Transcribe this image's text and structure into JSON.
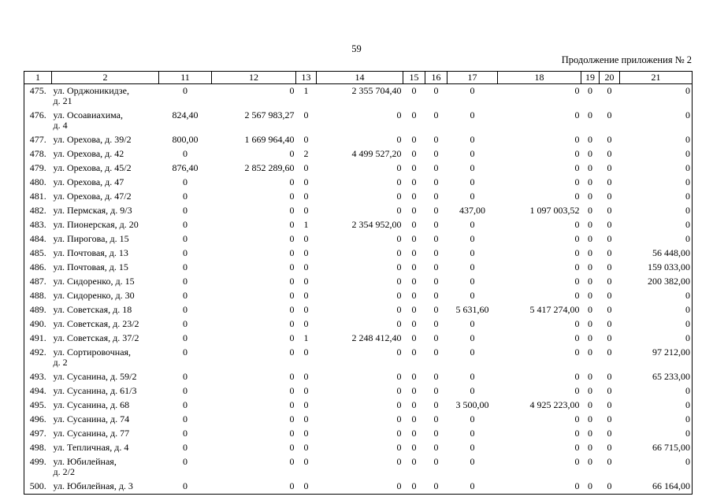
{
  "page": {
    "number": "59",
    "continuation": "Продолжение приложения № 2"
  },
  "table": {
    "columns": [
      "1",
      "2",
      "11",
      "12",
      "13",
      "14",
      "15",
      "16",
      "17",
      "18",
      "19",
      "20",
      "21"
    ],
    "rows": [
      {
        "n": "475.",
        "address": "ул. Орджоникидзе,\nд. 21",
        "values": [
          "0",
          "0",
          "1",
          "2 355 704,40",
          "0",
          "0",
          "0",
          "0",
          "0",
          "0",
          "0"
        ]
      },
      {
        "n": "476.",
        "address": "ул. Осоавиахима,\nд. 4",
        "values": [
          "824,40",
          "2 567 983,27",
          "0",
          "0",
          "0",
          "0",
          "0",
          "0",
          "0",
          "0",
          "0"
        ]
      },
      {
        "n": "477.",
        "address": "ул. Орехова, д. 39/2",
        "values": [
          "800,00",
          "1 669 964,40",
          "0",
          "0",
          "0",
          "0",
          "0",
          "0",
          "0",
          "0",
          "0"
        ]
      },
      {
        "n": "478.",
        "address": "ул. Орехова, д. 42",
        "values": [
          "0",
          "0",
          "2",
          "4 499 527,20",
          "0",
          "0",
          "0",
          "0",
          "0",
          "0",
          "0"
        ]
      },
      {
        "n": "479.",
        "address": "ул. Орехова, д. 45/2",
        "values": [
          "876,40",
          "2 852 289,60",
          "0",
          "0",
          "0",
          "0",
          "0",
          "0",
          "0",
          "0",
          "0"
        ]
      },
      {
        "n": "480.",
        "address": "ул. Орехова, д. 47",
        "values": [
          "0",
          "0",
          "0",
          "0",
          "0",
          "0",
          "0",
          "0",
          "0",
          "0",
          "0"
        ]
      },
      {
        "n": "481.",
        "address": "ул. Орехова, д. 47/2",
        "values": [
          "0",
          "0",
          "0",
          "0",
          "0",
          "0",
          "0",
          "0",
          "0",
          "0",
          "0"
        ]
      },
      {
        "n": "482.",
        "address": "ул. Пермская, д. 9/3",
        "values": [
          "0",
          "0",
          "0",
          "0",
          "0",
          "0",
          "437,00",
          "1 097 003,52",
          "0",
          "0",
          "0"
        ]
      },
      {
        "n": "483.",
        "address": "ул. Пионерская, д. 20",
        "values": [
          "0",
          "0",
          "1",
          "2 354 952,00",
          "0",
          "0",
          "0",
          "0",
          "0",
          "0",
          "0"
        ]
      },
      {
        "n": "484.",
        "address": "ул. Пирогова, д. 15",
        "values": [
          "0",
          "0",
          "0",
          "0",
          "0",
          "0",
          "0",
          "0",
          "0",
          "0",
          "0"
        ]
      },
      {
        "n": "485.",
        "address": "ул. Почтовая, д. 13",
        "values": [
          "0",
          "0",
          "0",
          "0",
          "0",
          "0",
          "0",
          "0",
          "0",
          "0",
          "56 448,00"
        ]
      },
      {
        "n": "486.",
        "address": "ул. Почтовая, д. 15",
        "values": [
          "0",
          "0",
          "0",
          "0",
          "0",
          "0",
          "0",
          "0",
          "0",
          "0",
          "159 033,00"
        ]
      },
      {
        "n": "487.",
        "address": "ул. Сидоренко, д. 15",
        "values": [
          "0",
          "0",
          "0",
          "0",
          "0",
          "0",
          "0",
          "0",
          "0",
          "0",
          "200 382,00"
        ]
      },
      {
        "n": "488.",
        "address": "ул. Сидоренко, д. 30",
        "values": [
          "0",
          "0",
          "0",
          "0",
          "0",
          "0",
          "0",
          "0",
          "0",
          "0",
          "0"
        ]
      },
      {
        "n": "489.",
        "address": "ул. Советская, д. 18",
        "values": [
          "0",
          "0",
          "0",
          "0",
          "0",
          "0",
          "5 631,60",
          "5 417 274,00",
          "0",
          "0",
          "0"
        ]
      },
      {
        "n": "490.",
        "address": "ул. Советская, д. 23/2",
        "values": [
          "0",
          "0",
          "0",
          "0",
          "0",
          "0",
          "0",
          "0",
          "0",
          "0",
          "0"
        ]
      },
      {
        "n": "491.",
        "address": "ул. Советская, д. 37/2",
        "values": [
          "0",
          "0",
          "1",
          "2 248 412,40",
          "0",
          "0",
          "0",
          "0",
          "0",
          "0",
          "0"
        ]
      },
      {
        "n": "492.",
        "address": "ул. Сортировочная,\nд. 2",
        "values": [
          "0",
          "0",
          "0",
          "0",
          "0",
          "0",
          "0",
          "0",
          "0",
          "0",
          "97 212,00"
        ]
      },
      {
        "n": "493.",
        "address": "ул. Сусанина, д. 59/2",
        "values": [
          "0",
          "0",
          "0",
          "0",
          "0",
          "0",
          "0",
          "0",
          "0",
          "0",
          "65 233,00"
        ]
      },
      {
        "n": "494.",
        "address": "ул. Сусанина, д. 61/3",
        "values": [
          "0",
          "0",
          "0",
          "0",
          "0",
          "0",
          "0",
          "0",
          "0",
          "0",
          "0"
        ]
      },
      {
        "n": "495.",
        "address": "ул. Сусанина, д. 68",
        "values": [
          "0",
          "0",
          "0",
          "0",
          "0",
          "0",
          "3 500,00",
          "4 925 223,00",
          "0",
          "0",
          "0"
        ]
      },
      {
        "n": "496.",
        "address": "ул. Сусанина, д. 74",
        "values": [
          "0",
          "0",
          "0",
          "0",
          "0",
          "0",
          "0",
          "0",
          "0",
          "0",
          "0"
        ]
      },
      {
        "n": "497.",
        "address": "ул. Сусанина, д. 77",
        "values": [
          "0",
          "0",
          "0",
          "0",
          "0",
          "0",
          "0",
          "0",
          "0",
          "0",
          "0"
        ]
      },
      {
        "n": "498.",
        "address": "ул. Тепличная, д. 4",
        "values": [
          "0",
          "0",
          "0",
          "0",
          "0",
          "0",
          "0",
          "0",
          "0",
          "0",
          "66 715,00"
        ]
      },
      {
        "n": "499.",
        "address": "ул. Юбилейная,\nд. 2/2",
        "values": [
          "0",
          "0",
          "0",
          "0",
          "0",
          "0",
          "0",
          "0",
          "0",
          "0",
          "0"
        ]
      },
      {
        "n": "500.",
        "address": "ул. Юбилейная, д. 3",
        "values": [
          "0",
          "0",
          "0",
          "0",
          "0",
          "0",
          "0",
          "0",
          "0",
          "0",
          "66 164,00"
        ]
      }
    ]
  }
}
